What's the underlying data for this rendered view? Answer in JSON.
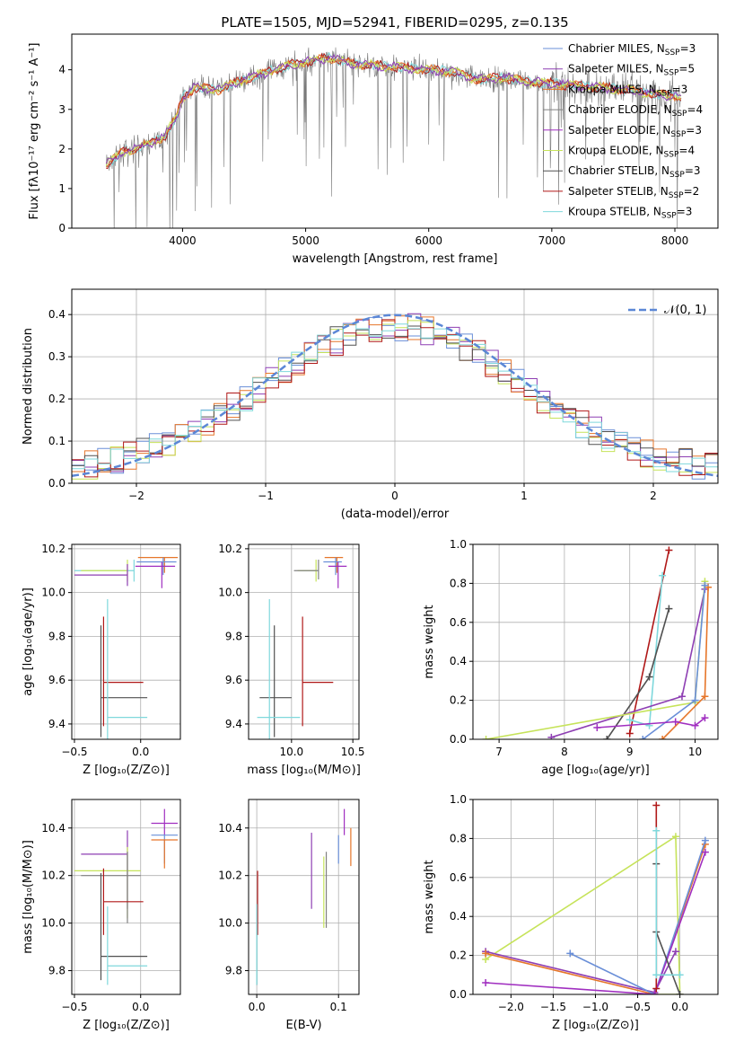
{
  "figure": {
    "title": "PLATE=1505, MJD=52941, FIBERID=0295, z=0.135"
  },
  "colors": {
    "series": [
      "#6a8fd8",
      "#8e3fb3",
      "#e6762a",
      "#808080",
      "#a02fc0",
      "#c6e35a",
      "#505050",
      "#b01818",
      "#7fd8dc"
    ],
    "gauss": "#5b87d6",
    "spectrum_model": [
      "#7fd8dc",
      "#b01818",
      "#e6762a",
      "#c6e35a",
      "#8e3fb3"
    ],
    "spectrum_data": "#7a7a7a"
  },
  "chart_data": [
    {
      "id": "spectrum",
      "type": "line",
      "xlabel": "wavelength [Angstrom, rest frame]",
      "ylabel": "Flux [fλ10⁻¹⁷ erg cm⁻² s⁻¹ A⁻¹]",
      "xlim": [
        3100,
        8350
      ],
      "ylim": [
        0,
        4.9
      ],
      "xticks": [
        4000,
        5000,
        6000,
        7000,
        8000
      ],
      "yticks": [
        0,
        1,
        2,
        3,
        4
      ],
      "grid": false,
      "legend_placement": "top-right",
      "legend": [
        {
          "label": "Chabrier MILES, N",
          "sub": "SSP",
          "suffix": "=3"
        },
        {
          "label": "Salpeter MILES, N",
          "sub": "SSP",
          "suffix": "=5"
        },
        {
          "label": "Kroupa MILES, N",
          "sub": "SSP",
          "suffix": "=3"
        },
        {
          "label": "Chabrier ELODIE, N",
          "sub": "SSP",
          "suffix": "=4"
        },
        {
          "label": "Salpeter ELODIE, N",
          "sub": "SSP",
          "suffix": "=3"
        },
        {
          "label": "Kroupa ELODIE, N",
          "sub": "SSP",
          "suffix": "=4"
        },
        {
          "label": "Chabrier STELIB, N",
          "sub": "SSP",
          "suffix": "=3"
        },
        {
          "label": "Salpeter STELIB, N",
          "sub": "SSP",
          "suffix": "=2"
        },
        {
          "label": "Kroupa STELIB, N",
          "sub": "SSP",
          "suffix": "=3"
        }
      ],
      "continuum": [
        [
          3380,
          1.6
        ],
        [
          3500,
          1.9
        ],
        [
          3700,
          2.1
        ],
        [
          3850,
          2.3
        ],
        [
          3950,
          2.8
        ],
        [
          4000,
          3.3
        ],
        [
          4100,
          3.55
        ],
        [
          4300,
          3.5
        ],
        [
          4500,
          3.75
        ],
        [
          4700,
          3.95
        ],
        [
          4850,
          4.1
        ],
        [
          5000,
          4.2
        ],
        [
          5200,
          4.3
        ],
        [
          5400,
          4.15
        ],
        [
          5600,
          4.1
        ],
        [
          5800,
          4.05
        ],
        [
          6000,
          4.0
        ],
        [
          6200,
          3.95
        ],
        [
          6400,
          3.75
        ],
        [
          6600,
          3.8
        ],
        [
          6800,
          3.7
        ],
        [
          7000,
          3.65
        ],
        [
          7200,
          3.6
        ],
        [
          7400,
          3.55
        ],
        [
          7600,
          3.5
        ],
        [
          7800,
          3.4
        ],
        [
          8000,
          3.35
        ],
        [
          8050,
          3.3
        ]
      ],
      "noise_sigma": 0.25
    },
    {
      "id": "residual_hist",
      "type": "bar",
      "xlabel": "(data-model)/error",
      "ylabel": "Normed distribution",
      "xlim": [
        -2.5,
        2.5
      ],
      "ylim": [
        0,
        0.46
      ],
      "xticks": [
        -2,
        -1,
        0,
        1,
        2
      ],
      "yticks": [
        0.0,
        0.1,
        0.2,
        0.3,
        0.4
      ],
      "grid": true,
      "legend_placement": "top-right",
      "legend": [
        {
          "label": "𝒩(0, 1)"
        }
      ],
      "bin_width": 0.1,
      "series_colors": [
        "#6a8fd8",
        "#8e3fb3",
        "#e6762a",
        "#c6e35a",
        "#505050",
        "#b01818",
        "#7fd8dc"
      ]
    },
    {
      "id": "age_vs_Z",
      "type": "scatter",
      "xlabel": "Z [log₁₀(Z/Z⊙)]",
      "ylabel": "age [log₁₀(age/yr)]",
      "xlim": [
        -0.52,
        0.3
      ],
      "ylim": [
        9.33,
        10.22
      ],
      "xticks": [
        -0.5,
        0.0
      ],
      "yticks": [
        9.4,
        9.6,
        9.8,
        10.0,
        10.2
      ],
      "grid": true,
      "points": [
        {
          "x": -0.05,
          "y": 10.1,
          "xlo": 0.45,
          "xhi": 0.0,
          "ylo": 0.05,
          "yhi": 0.05,
          "c": 8
        },
        {
          "x": 0.18,
          "y": 10.16,
          "xlo": 0.2,
          "xhi": 0.1,
          "ylo": 0.07,
          "yhi": 0.0,
          "c": 2
        },
        {
          "x": 0.17,
          "y": 10.14,
          "xlo": 0.2,
          "xhi": 0.1,
          "ylo": 0.06,
          "yhi": 0.02,
          "c": 0
        },
        {
          "x": 0.16,
          "y": 10.12,
          "xlo": 0.2,
          "xhi": 0.1,
          "ylo": 0.1,
          "yhi": 0.02,
          "c": 4
        },
        {
          "x": -0.1,
          "y": 10.1,
          "xlo": 0.35,
          "xhi": 0.0,
          "ylo": 0.05,
          "yhi": 0.05,
          "c": 5
        },
        {
          "x": -0.1,
          "y": 10.08,
          "xlo": 0.4,
          "xhi": 0.0,
          "ylo": 0.05,
          "yhi": 0.05,
          "c": 1
        },
        {
          "x": -0.3,
          "y": 9.52,
          "xlo": 0.0,
          "xhi": 0.35,
          "ylo": 0.18,
          "yhi": 0.33,
          "c": 6
        },
        {
          "x": -0.28,
          "y": 9.59,
          "xlo": 0.0,
          "xhi": 0.3,
          "ylo": 0.2,
          "yhi": 0.3,
          "c": 7
        },
        {
          "x": -0.25,
          "y": 9.43,
          "xlo": 0.0,
          "xhi": 0.3,
          "ylo": 0.1,
          "yhi": 0.54,
          "c": 8
        }
      ]
    },
    {
      "id": "age_vs_mass",
      "type": "scatter",
      "xlabel": "mass [log₁₀(M/M⊙)]",
      "ylabel": "",
      "xlim": [
        9.65,
        10.55
      ],
      "ylim": [
        9.33,
        10.22
      ],
      "xticks": [
        10.0,
        10.5
      ],
      "yticks": [
        9.4,
        9.6,
        9.8,
        10.0,
        10.2
      ],
      "grid": true,
      "points": [
        {
          "x": 10.37,
          "y": 10.16,
          "xlo": 0.1,
          "xhi": 0.05,
          "ylo": 0.07,
          "yhi": 0.0,
          "c": 2
        },
        {
          "x": 10.36,
          "y": 10.14,
          "xlo": 0.1,
          "xhi": 0.05,
          "ylo": 0.06,
          "yhi": 0.02,
          "c": 0
        },
        {
          "x": 10.38,
          "y": 10.12,
          "xlo": 0.08,
          "xhi": 0.07,
          "ylo": 0.1,
          "yhi": 0.02,
          "c": 4
        },
        {
          "x": 10.2,
          "y": 10.1,
          "xlo": 0.15,
          "xhi": 0.0,
          "ylo": 0.05,
          "yhi": 0.05,
          "c": 5
        },
        {
          "x": 10.22,
          "y": 10.1,
          "xlo": 0.2,
          "xhi": 0.0,
          "ylo": 0.04,
          "yhi": 0.05,
          "c": 3
        },
        {
          "x": 9.86,
          "y": 9.52,
          "xlo": 0.12,
          "xhi": 0.14,
          "ylo": 0.18,
          "yhi": 0.33,
          "c": 6
        },
        {
          "x": 10.09,
          "y": 9.59,
          "xlo": 0.0,
          "xhi": 0.25,
          "ylo": 0.2,
          "yhi": 0.3,
          "c": 7
        },
        {
          "x": 9.82,
          "y": 9.43,
          "xlo": 0.1,
          "xhi": 0.25,
          "ylo": 0.1,
          "yhi": 0.54,
          "c": 8
        }
      ]
    },
    {
      "id": "weight_vs_age",
      "type": "line",
      "xlabel": "age [log₁₀(age/yr)]",
      "ylabel": "mass weight",
      "xlim": [
        6.6,
        10.35
      ],
      "ylim": [
        0,
        1.0
      ],
      "xticks": [
        7,
        8,
        9,
        10
      ],
      "yticks": [
        0.0,
        0.2,
        0.4,
        0.6,
        0.8,
        1.0
      ],
      "grid": true,
      "series": [
        {
          "c": 7,
          "x": [
            9.0,
            9.6
          ],
          "y": [
            0.03,
            0.97
          ]
        },
        {
          "c": 8,
          "x": [
            9.0,
            9.3,
            9.5
          ],
          "y": [
            0.1,
            0.07,
            0.84
          ]
        },
        {
          "c": 6,
          "x": [
            8.65,
            9.3,
            9.6
          ],
          "y": [
            0.0,
            0.32,
            0.67
          ]
        },
        {
          "c": 1,
          "x": [
            7.8,
            9.8,
            10.15
          ],
          "y": [
            0.01,
            0.22,
            0.77
          ]
        },
        {
          "c": 5,
          "x": [
            6.8,
            10.0,
            10.15
          ],
          "y": [
            0.0,
            0.19,
            0.81
          ]
        },
        {
          "c": 2,
          "x": [
            9.5,
            10.15,
            10.2
          ],
          "y": [
            0.0,
            0.22,
            0.78
          ]
        },
        {
          "c": 0,
          "x": [
            9.2,
            10.0,
            10.15
          ],
          "y": [
            0.0,
            0.2,
            0.79
          ]
        },
        {
          "c": 4,
          "x": [
            8.5,
            9.7,
            10.0,
            10.15
          ],
          "y": [
            0.06,
            0.09,
            0.07,
            0.11
          ]
        }
      ]
    },
    {
      "id": "mass_vs_Z",
      "type": "scatter",
      "xlabel": "Z [log₁₀(Z/Z⊙)]",
      "ylabel": "mass [log₁₀(M/M⊙)]",
      "xlim": [
        -0.52,
        0.3
      ],
      "ylim": [
        9.7,
        10.52
      ],
      "xticks": [
        -0.5,
        0.0
      ],
      "yticks": [
        9.8,
        10.0,
        10.2,
        10.4
      ],
      "grid": true,
      "points": [
        {
          "x": 0.18,
          "y": 10.42,
          "xlo": 0.1,
          "xhi": 0.1,
          "ylo": 0.05,
          "yhi": 0.06,
          "c": 4
        },
        {
          "x": 0.18,
          "y": 10.37,
          "xlo": 0.1,
          "xhi": 0.1,
          "ylo": 0.12,
          "yhi": 0.0,
          "c": 0
        },
        {
          "x": 0.18,
          "y": 10.35,
          "xlo": 0.1,
          "xhi": 0.1,
          "ylo": 0.12,
          "yhi": 0.0,
          "c": 2
        },
        {
          "x": -0.1,
          "y": 10.29,
          "xlo": 0.35,
          "xhi": 0.0,
          "ylo": 0.23,
          "yhi": 0.1,
          "c": 1
        },
        {
          "x": -0.1,
          "y": 10.22,
          "xlo": 0.4,
          "xhi": 0.1,
          "ylo": 0.2,
          "yhi": 0.1,
          "c": 5
        },
        {
          "x": -0.1,
          "y": 10.2,
          "xlo": 0.35,
          "xhi": 0.1,
          "ylo": 0.2,
          "yhi": 0.1,
          "c": 3
        },
        {
          "x": -0.28,
          "y": 10.09,
          "xlo": 0.0,
          "xhi": 0.3,
          "ylo": 0.14,
          "yhi": 0.14,
          "c": 7
        },
        {
          "x": -0.3,
          "y": 9.86,
          "xlo": 0.0,
          "xhi": 0.35,
          "ylo": 0.1,
          "yhi": 0.35,
          "c": 6
        },
        {
          "x": -0.25,
          "y": 9.82,
          "xlo": 0.0,
          "xhi": 0.3,
          "ylo": 0.08,
          "yhi": 0.25,
          "c": 8
        }
      ]
    },
    {
      "id": "mass_vs_EBV",
      "type": "scatter",
      "xlabel": "E(B-V)",
      "ylabel": "",
      "xlim": [
        -0.01,
        0.125
      ],
      "ylim": [
        9.7,
        10.52
      ],
      "xticks": [
        0.0,
        0.1
      ],
      "yticks": [
        9.8,
        10.0,
        10.2,
        10.4
      ],
      "grid": true,
      "points": [
        {
          "x": 0.107,
          "y": 10.42,
          "xlo": 0,
          "xhi": 0,
          "ylo": 0.05,
          "yhi": 0.06,
          "c": 4
        },
        {
          "x": 0.1,
          "y": 10.35,
          "xlo": 0,
          "xhi": 0,
          "ylo": 0.1,
          "yhi": 0.02,
          "c": 0
        },
        {
          "x": 0.115,
          "y": 10.33,
          "xlo": 0,
          "xhi": 0,
          "ylo": 0.09,
          "yhi": 0.07,
          "c": 2
        },
        {
          "x": 0.085,
          "y": 10.18,
          "xlo": 0,
          "xhi": 0,
          "ylo": 0.2,
          "yhi": 0.12,
          "c": 3
        },
        {
          "x": 0.082,
          "y": 10.14,
          "xlo": 0,
          "xhi": 0,
          "ylo": 0.16,
          "yhi": 0.14,
          "c": 5
        },
        {
          "x": 0.067,
          "y": 10.22,
          "xlo": 0,
          "xhi": 0,
          "ylo": 0.16,
          "yhi": 0.16,
          "c": 1
        },
        {
          "x": 0.001,
          "y": 10.09,
          "xlo": 0,
          "xhi": 0,
          "ylo": 0.14,
          "yhi": 0.13,
          "c": 7
        },
        {
          "x": 0.0,
          "y": 9.86,
          "xlo": 0,
          "xhi": 0,
          "ylo": 0.12,
          "yhi": 0.12,
          "c": 6
        },
        {
          "x": 0.0,
          "y": 9.82,
          "xlo": 0,
          "xhi": 0,
          "ylo": 0.08,
          "yhi": 0.26,
          "c": 8
        }
      ]
    },
    {
      "id": "weight_vs_Z",
      "type": "line",
      "xlabel": "Z [log₁₀(Z/Z⊙)]",
      "ylabel": "mass weight",
      "xlim": [
        -2.45,
        0.45
      ],
      "ylim": [
        0,
        1.0
      ],
      "xticks": [
        -2.0,
        -1.5,
        -1.0,
        -0.5,
        0.0
      ],
      "yticks": [
        0.0,
        0.2,
        0.4,
        0.6,
        0.8,
        1.0
      ],
      "grid": true,
      "series": [
        {
          "c": 5,
          "x": [
            -2.3,
            -0.05,
            0.0,
            -0.35
          ],
          "y": [
            0.18,
            0.81,
            0.0,
            0.0
          ]
        },
        {
          "c": 1,
          "x": [
            -2.3,
            -0.3,
            -0.05
          ],
          "y": [
            0.22,
            0.01,
            0.22
          ]
        },
        {
          "c": 2,
          "x": [
            -2.3,
            -0.3,
            0.3
          ],
          "y": [
            0.21,
            0.0,
            0.77
          ]
        },
        {
          "c": 0,
          "x": [
            -1.3,
            -0.3,
            0.3
          ],
          "y": [
            0.21,
            0.0,
            0.79
          ]
        },
        {
          "c": 4,
          "x": [
            -2.3,
            -0.3,
            0.3
          ],
          "y": [
            0.06,
            0.0,
            0.73
          ]
        },
        {
          "c": 6,
          "x": [
            -0.28,
            -0.28,
            0.0
          ],
          "y": [
            0.67,
            0.32,
            0.0
          ]
        },
        {
          "c": 7,
          "x": [
            -0.28,
            -0.28
          ],
          "y": [
            0.97,
            0.03
          ]
        },
        {
          "c": 8,
          "x": [
            -0.28,
            -0.28,
            0.0
          ],
          "y": [
            0.84,
            0.1,
            0.1
          ]
        }
      ]
    }
  ]
}
